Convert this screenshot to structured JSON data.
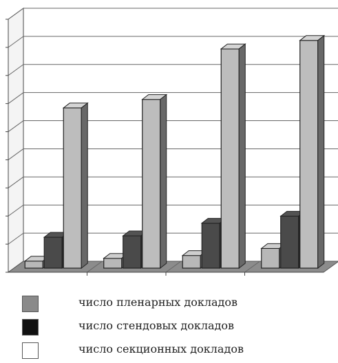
{
  "chart_data": {
    "type": "bar",
    "title": "",
    "xlabel": "",
    "ylabel": "",
    "ylim": [
      0,
      9
    ],
    "grid": true,
    "categories": [
      "",
      "",
      "",
      ""
    ],
    "series": [
      {
        "name": "число секционных докладов",
        "values": [
          0.25,
          0.35,
          0.45,
          0.7
        ],
        "color": "#b8b8b8"
      },
      {
        "name": "число стендовых докладов",
        "values": [
          1.1,
          1.15,
          1.6,
          1.85
        ],
        "color": "#4a4a4a"
      },
      {
        "name": "число пленарных докладов",
        "values": [
          5.7,
          6.0,
          7.8,
          8.1
        ],
        "color": "#bdbdbd"
      }
    ]
  },
  "legend": {
    "items": [
      {
        "label": "число пленарных докладов",
        "color": "#8a8a8a"
      },
      {
        "label": "число стендовых докладов",
        "color": "#111111"
      },
      {
        "label": "число секционных докладов",
        "color": "#ffffff"
      }
    ]
  }
}
